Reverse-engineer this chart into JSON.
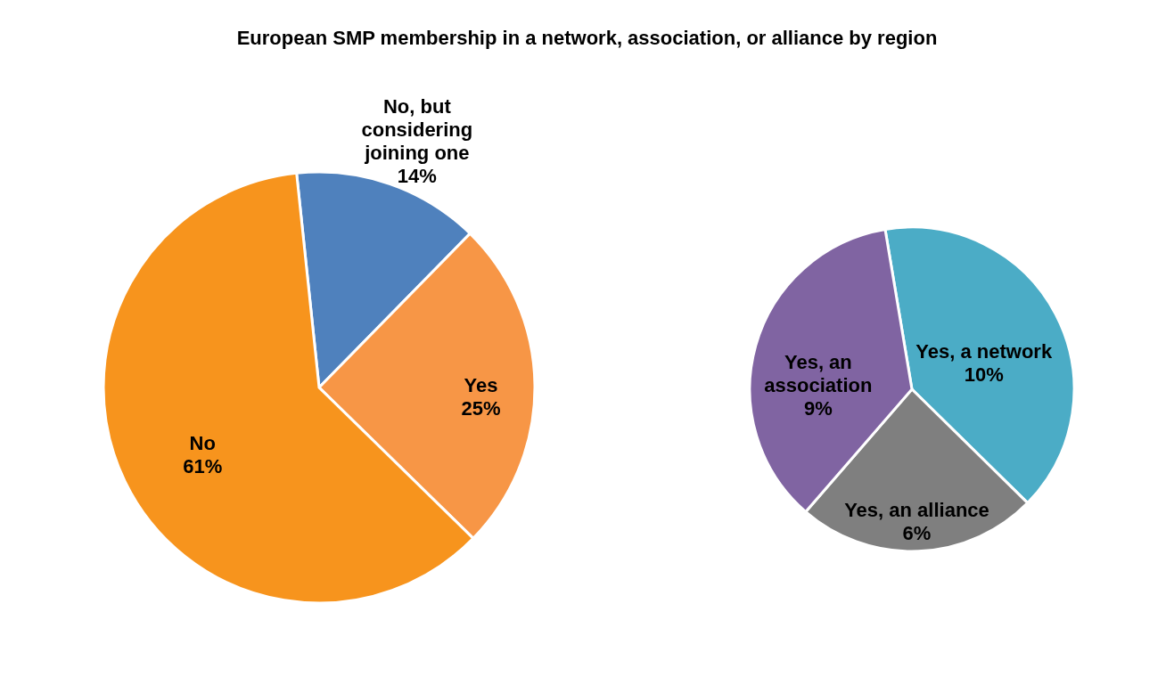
{
  "chart_data": [
    {
      "type": "pie",
      "title": "European SMP membership in a network, association, or alliance by region",
      "categories": [
        "No, but considering joining one",
        "Yes",
        "No"
      ],
      "values": [
        14,
        25,
        61
      ],
      "colors": [
        "#4f81bd",
        "#f79646",
        "#f7941d"
      ],
      "value_labels": [
        "14%",
        "25%",
        "61%"
      ]
    },
    {
      "type": "pie",
      "categories": [
        "Yes, a network",
        "Yes, an alliance",
        "Yes, an association"
      ],
      "values": [
        10,
        6,
        9
      ],
      "colors": [
        "#4bacc6",
        "#7f7f7f",
        "#8064a2"
      ],
      "value_labels": [
        "10%",
        "6%",
        "9%"
      ]
    }
  ]
}
